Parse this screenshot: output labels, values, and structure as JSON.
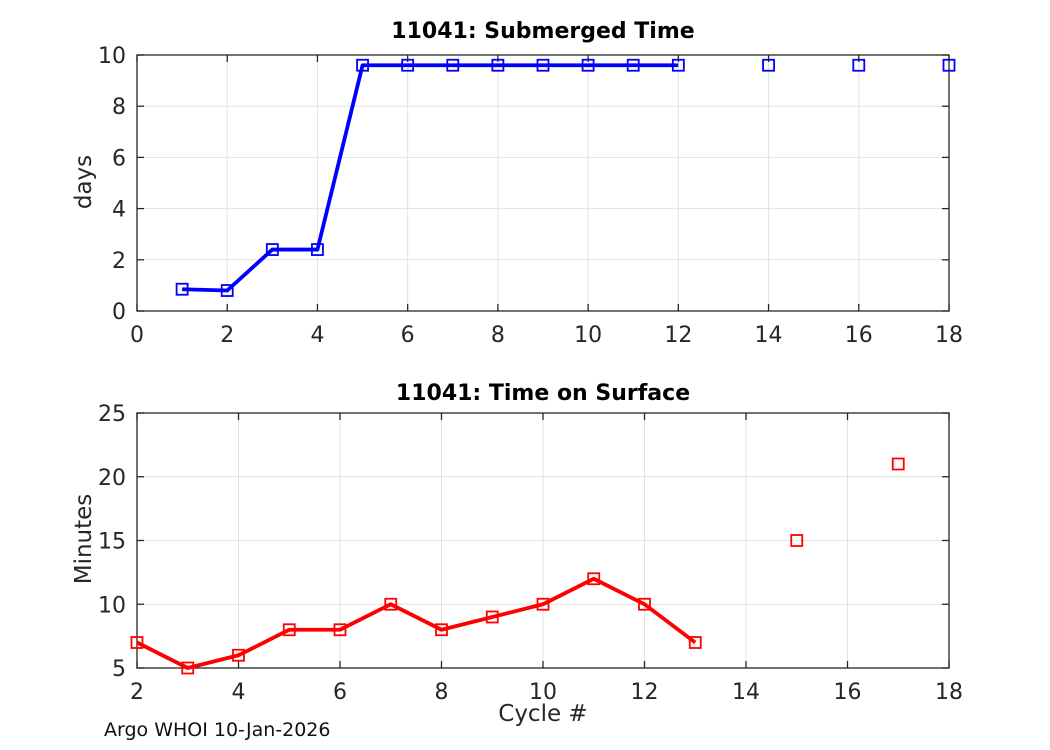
{
  "figure": {
    "background": "#ffffff",
    "footer": "Argo WHOI 10-Jan-2026"
  },
  "style": {
    "axis_color": "#262626",
    "grid_color": "#e2e2e2",
    "tick_label_color": "#262626",
    "tick_label_size": 22,
    "line_width": 3.8,
    "marker_size": 11,
    "marker_stroke": 1.8,
    "tick_length": 7
  },
  "chart_data": [
    {
      "type": "line",
      "title": "11041: Submerged Time",
      "xlabel": "",
      "ylabel": "days",
      "xlim": [
        0,
        18
      ],
      "ylim": [
        0,
        10
      ],
      "xticks": [
        0,
        2,
        4,
        6,
        8,
        10,
        12,
        14,
        16,
        18
      ],
      "yticks": [
        0,
        2,
        4,
        6,
        8,
        10
      ],
      "grid": true,
      "legend": null,
      "color": "#0000ff",
      "marker": "open-square",
      "series": [
        {
          "name": "submerged-days-connected",
          "line": true,
          "x": [
            1,
            2,
            3,
            4,
            5,
            6,
            7,
            8,
            9,
            10,
            11,
            12
          ],
          "y": [
            0.85,
            0.8,
            2.4,
            2.4,
            9.6,
            9.6,
            9.6,
            9.6,
            9.6,
            9.6,
            9.6,
            9.6
          ]
        },
        {
          "name": "submerged-days-isolated-markers",
          "line": false,
          "x": [
            14,
            16,
            18
          ],
          "y": [
            9.6,
            9.6,
            9.6
          ]
        }
      ]
    },
    {
      "type": "line",
      "title": "11041: Time on Surface",
      "xlabel": "Cycle #",
      "ylabel": "Minutes",
      "xlim": [
        2,
        18
      ],
      "ylim": [
        5,
        25
      ],
      "xticks": [
        2,
        4,
        6,
        8,
        10,
        12,
        14,
        16,
        18
      ],
      "yticks": [
        5,
        10,
        15,
        20,
        25
      ],
      "grid": true,
      "legend": null,
      "color": "#ff0000",
      "marker": "open-square",
      "series": [
        {
          "name": "surface-minutes-connected",
          "line": true,
          "x": [
            2,
            3,
            4,
            5,
            6,
            7,
            8,
            9,
            10,
            11,
            12,
            13
          ],
          "y": [
            7,
            5,
            6,
            8,
            8,
            10,
            8,
            9,
            10,
            12,
            10,
            7
          ]
        },
        {
          "name": "surface-minutes-isolated-markers",
          "line": false,
          "x": [
            15,
            17
          ],
          "y": [
            15,
            21
          ]
        }
      ]
    }
  ]
}
